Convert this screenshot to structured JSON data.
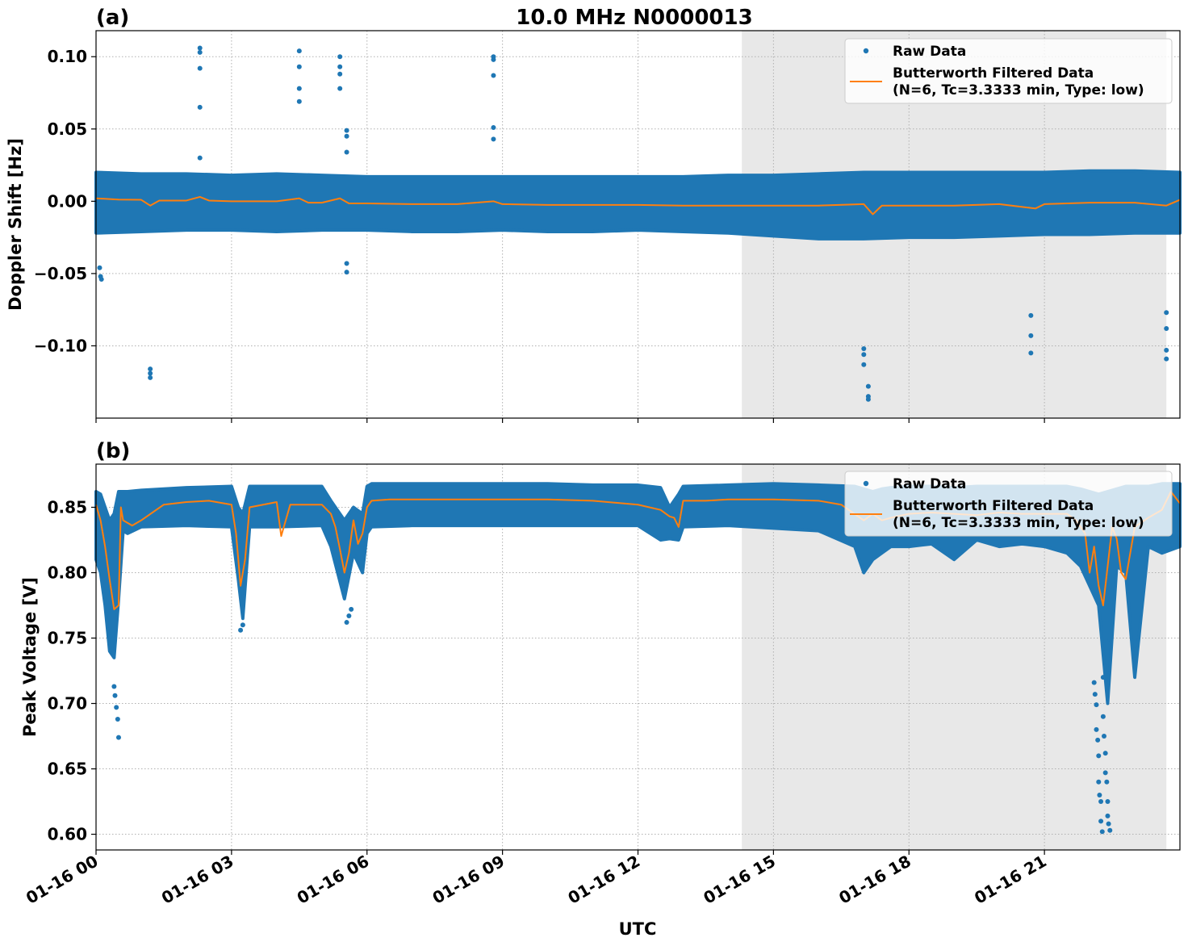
{
  "figure": {
    "title": "10.0 MHz N0000013",
    "xlabel": "UTC"
  },
  "colors": {
    "raw": "#1f77b4",
    "filtered": "#ff7f0e",
    "shade": "#e8e8e8",
    "grid": "#b0b0b0"
  },
  "chart_data": [
    {
      "type": "scatter",
      "panel_label": "(a)",
      "ylabel": "Doppler Shift [Hz]",
      "x_unit": "hours UTC on 01-16",
      "xlim": [
        0,
        24
      ],
      "ylim": [
        -0.15,
        0.118
      ],
      "x_ticks": [
        0,
        3,
        6,
        9,
        12,
        15,
        18,
        21
      ],
      "x_tick_labels": [
        "01-16 00",
        "01-16 03",
        "01-16 06",
        "01-16 09",
        "01-16 12",
        "01-16 15",
        "01-16 18",
        "01-16 21"
      ],
      "y_ticks": [
        -0.1,
        -0.05,
        0.0,
        0.05,
        0.1
      ],
      "y_tick_labels": [
        "−0.10",
        "−0.05",
        "0.00",
        "0.05",
        "0.10"
      ],
      "grid": true,
      "shaded_interval": [
        14.3,
        23.7
      ],
      "legend": {
        "placement": "top-right",
        "entries": [
          "Raw Data",
          "Butterworth Filtered Data",
          "(N=6, Tc=3.3333 min, Type: low)"
        ]
      },
      "series": [
        {
          "name": "Raw Data",
          "kind": "band",
          "x": [
            0,
            1,
            2,
            3,
            4,
            5,
            6,
            7,
            8,
            9,
            10,
            11,
            12,
            13,
            14,
            15,
            16,
            17,
            18,
            19,
            20,
            21,
            22,
            23,
            24
          ],
          "y_low": [
            -0.022,
            -0.021,
            -0.02,
            -0.02,
            -0.021,
            -0.02,
            -0.02,
            -0.021,
            -0.021,
            -0.02,
            -0.021,
            -0.021,
            -0.02,
            -0.021,
            -0.022,
            -0.024,
            -0.026,
            -0.026,
            -0.025,
            -0.025,
            -0.024,
            -0.023,
            -0.023,
            -0.022,
            -0.022
          ],
          "y_high": [
            0.02,
            0.019,
            0.019,
            0.018,
            0.019,
            0.018,
            0.017,
            0.017,
            0.017,
            0.017,
            0.017,
            0.017,
            0.017,
            0.017,
            0.018,
            0.018,
            0.019,
            0.02,
            0.02,
            0.02,
            0.02,
            0.02,
            0.021,
            0.021,
            0.02
          ]
        },
        {
          "name": "Raw Data outliers",
          "kind": "points",
          "x": [
            0.08,
            0.1,
            0.12,
            1.2,
            1.2,
            1.2,
            2.3,
            2.3,
            2.3,
            2.3,
            2.3,
            4.5,
            4.5,
            4.5,
            4.5,
            5.4,
            5.4,
            5.4,
            5.4,
            5.55,
            5.55,
            5.55,
            5.55,
            5.55,
            8.8,
            8.8,
            8.8,
            8.8,
            8.8,
            17.0,
            17.0,
            17.0,
            17.1,
            17.1,
            17.1,
            20.7,
            20.7,
            20.7,
            23.7,
            23.7,
            23.7,
            23.7
          ],
          "y": [
            -0.046,
            -0.052,
            -0.054,
            -0.116,
            -0.119,
            -0.122,
            0.106,
            0.103,
            0.092,
            0.065,
            0.03,
            0.104,
            0.093,
            0.078,
            0.069,
            0.1,
            0.093,
            0.088,
            0.078,
            0.049,
            0.045,
            0.034,
            -0.043,
            -0.049,
            0.1,
            0.098,
            0.087,
            0.051,
            0.043,
            -0.102,
            -0.106,
            -0.113,
            -0.128,
            -0.135,
            -0.137,
            -0.079,
            -0.093,
            -0.105,
            -0.077,
            -0.088,
            -0.103,
            -0.109
          ]
        },
        {
          "name": "Butterworth Filtered Data",
          "kind": "line",
          "x": [
            0,
            0.5,
            1,
            1.2,
            1.4,
            2,
            2.3,
            2.5,
            3,
            4,
            4.5,
            4.7,
            5,
            5.4,
            5.6,
            6,
            7,
            8,
            8.8,
            9,
            10,
            11,
            12,
            13,
            14,
            15,
            16,
            17,
            17.2,
            17.4,
            18,
            19,
            20,
            20.8,
            21,
            22,
            23,
            23.7,
            24
          ],
          "y": [
            0.002,
            0.0012,
            0.001,
            -0.003,
            0.0005,
            0.0005,
            0.003,
            0.0005,
            0.0,
            0.0,
            0.002,
            -0.001,
            -0.001,
            0.002,
            -0.0015,
            -0.0015,
            -0.002,
            -0.002,
            0.0,
            -0.002,
            -0.0025,
            -0.0025,
            -0.0025,
            -0.003,
            -0.003,
            -0.003,
            -0.003,
            -0.002,
            -0.009,
            -0.003,
            -0.003,
            -0.003,
            -0.002,
            -0.005,
            -0.002,
            -0.001,
            -0.001,
            -0.003,
            0.001
          ]
        }
      ]
    },
    {
      "type": "scatter",
      "panel_label": "(b)",
      "ylabel": "Peak Voltage [V]",
      "x_unit": "hours UTC on 01-16",
      "xlim": [
        0,
        24
      ],
      "ylim": [
        0.588,
        0.883
      ],
      "x_ticks": [
        0,
        3,
        6,
        9,
        12,
        15,
        18,
        21
      ],
      "x_tick_labels": [
        "01-16 00",
        "01-16 03",
        "01-16 06",
        "01-16 09",
        "01-16 12",
        "01-16 15",
        "01-16 18",
        "01-16 21"
      ],
      "y_ticks": [
        0.6,
        0.65,
        0.7,
        0.75,
        0.8,
        0.85
      ],
      "y_tick_labels": [
        "0.60",
        "0.65",
        "0.70",
        "0.75",
        "0.80",
        "0.85"
      ],
      "grid": true,
      "shaded_interval": [
        14.3,
        23.7
      ],
      "legend": {
        "placement": "top-right",
        "entries": [
          "Raw Data",
          "Butterworth Filtered Data",
          "(N=6, Tc=3.3333 min, Type: low)"
        ]
      },
      "series": [
        {
          "name": "Raw Data",
          "kind": "band",
          "x": [
            0,
            0.1,
            0.2,
            0.3,
            0.4,
            0.5,
            0.6,
            0.7,
            1.0,
            2.0,
            3.0,
            3.15,
            3.25,
            3.4,
            4.0,
            5.0,
            5.2,
            5.5,
            5.7,
            5.9,
            6.0,
            6.1,
            7,
            8,
            9,
            10,
            11,
            12,
            12.5,
            12.7,
            12.9,
            13.0,
            14,
            15,
            16,
            16.8,
            17.0,
            17.2,
            17.4,
            17.6,
            18,
            18.5,
            19.0,
            19.5,
            20,
            20.5,
            21,
            21.5,
            21.8,
            22.0,
            22.2,
            22.4,
            22.6,
            22.8,
            23.0,
            23.3,
            23.6,
            24
          ],
          "y_low": [
            0.81,
            0.8,
            0.775,
            0.74,
            0.735,
            0.78,
            0.832,
            0.83,
            0.835,
            0.836,
            0.835,
            0.795,
            0.765,
            0.835,
            0.835,
            0.836,
            0.82,
            0.78,
            0.815,
            0.8,
            0.83,
            0.835,
            0.836,
            0.836,
            0.836,
            0.836,
            0.836,
            0.836,
            0.825,
            0.826,
            0.825,
            0.835,
            0.836,
            0.834,
            0.832,
            0.82,
            0.8,
            0.81,
            0.815,
            0.82,
            0.82,
            0.822,
            0.81,
            0.825,
            0.82,
            0.822,
            0.82,
            0.815,
            0.805,
            0.79,
            0.775,
            0.7,
            0.805,
            0.8,
            0.72,
            0.82,
            0.815,
            0.82
          ],
          "y_high": [
            0.862,
            0.86,
            0.85,
            0.84,
            0.845,
            0.862,
            0.862,
            0.862,
            0.863,
            0.865,
            0.866,
            0.85,
            0.845,
            0.866,
            0.866,
            0.866,
            0.855,
            0.84,
            0.85,
            0.845,
            0.866,
            0.868,
            0.868,
            0.868,
            0.868,
            0.868,
            0.867,
            0.867,
            0.865,
            0.85,
            0.86,
            0.866,
            0.867,
            0.868,
            0.867,
            0.866,
            0.864,
            0.862,
            0.864,
            0.865,
            0.866,
            0.866,
            0.865,
            0.866,
            0.866,
            0.866,
            0.866,
            0.866,
            0.864,
            0.862,
            0.86,
            0.862,
            0.864,
            0.866,
            0.866,
            0.866,
            0.868,
            0.868
          ]
        },
        {
          "name": "Raw Data outliers",
          "kind": "points",
          "x": [
            0.4,
            0.42,
            0.45,
            0.48,
            0.5,
            3.2,
            3.25,
            5.55,
            5.6,
            5.65,
            22.1,
            22.12,
            22.15,
            22.15,
            22.18,
            22.2,
            22.2,
            22.22,
            22.25,
            22.25,
            22.28,
            22.3,
            22.3,
            22.32,
            22.35,
            22.35,
            22.38,
            22.4,
            22.4,
            22.42,
            22.45,
            22.45
          ],
          "y": [
            0.713,
            0.706,
            0.697,
            0.688,
            0.674,
            0.756,
            0.76,
            0.762,
            0.767,
            0.772,
            0.716,
            0.707,
            0.699,
            0.68,
            0.672,
            0.66,
            0.64,
            0.63,
            0.625,
            0.61,
            0.602,
            0.72,
            0.69,
            0.675,
            0.662,
            0.647,
            0.64,
            0.625,
            0.614,
            0.608,
            0.603,
            0.749
          ],
          "_x_comment": ""
        },
        {
          "name": "Butterworth Filtered Data",
          "kind": "line",
          "x": [
            0,
            0.1,
            0.2,
            0.3,
            0.4,
            0.5,
            0.55,
            0.6,
            0.8,
            1.0,
            1.5,
            2.0,
            2.5,
            3.0,
            3.1,
            3.2,
            3.3,
            3.4,
            4.0,
            4.1,
            4.3,
            5.0,
            5.2,
            5.3,
            5.4,
            5.5,
            5.6,
            5.7,
            5.8,
            5.9,
            6.0,
            6.1,
            6.5,
            7,
            8,
            9,
            10,
            11,
            12,
            12.5,
            12.7,
            12.8,
            12.9,
            13.0,
            13.5,
            14,
            15,
            16,
            16.5,
            17.0,
            17.2,
            17.4,
            17.6,
            18,
            18.5,
            19,
            19.5,
            20,
            20.5,
            21,
            21.5,
            21.7,
            21.9,
            22.0,
            22.1,
            22.2,
            22.3,
            22.4,
            22.5,
            22.6,
            22.7,
            22.8,
            23.0,
            23.3,
            23.6,
            23.8,
            24
          ],
          "y": [
            0.852,
            0.84,
            0.82,
            0.795,
            0.772,
            0.775,
            0.85,
            0.84,
            0.836,
            0.84,
            0.852,
            0.854,
            0.855,
            0.852,
            0.83,
            0.79,
            0.81,
            0.85,
            0.854,
            0.828,
            0.852,
            0.852,
            0.845,
            0.835,
            0.818,
            0.8,
            0.815,
            0.84,
            0.822,
            0.83,
            0.85,
            0.855,
            0.856,
            0.856,
            0.856,
            0.856,
            0.856,
            0.855,
            0.852,
            0.848,
            0.843,
            0.842,
            0.835,
            0.855,
            0.855,
            0.856,
            0.856,
            0.855,
            0.852,
            0.84,
            0.845,
            0.84,
            0.842,
            0.845,
            0.846,
            0.845,
            0.844,
            0.846,
            0.845,
            0.845,
            0.845,
            0.84,
            0.83,
            0.8,
            0.82,
            0.79,
            0.775,
            0.805,
            0.835,
            0.826,
            0.8,
            0.795,
            0.835,
            0.842,
            0.848,
            0.862,
            0.853
          ]
        }
      ]
    }
  ]
}
